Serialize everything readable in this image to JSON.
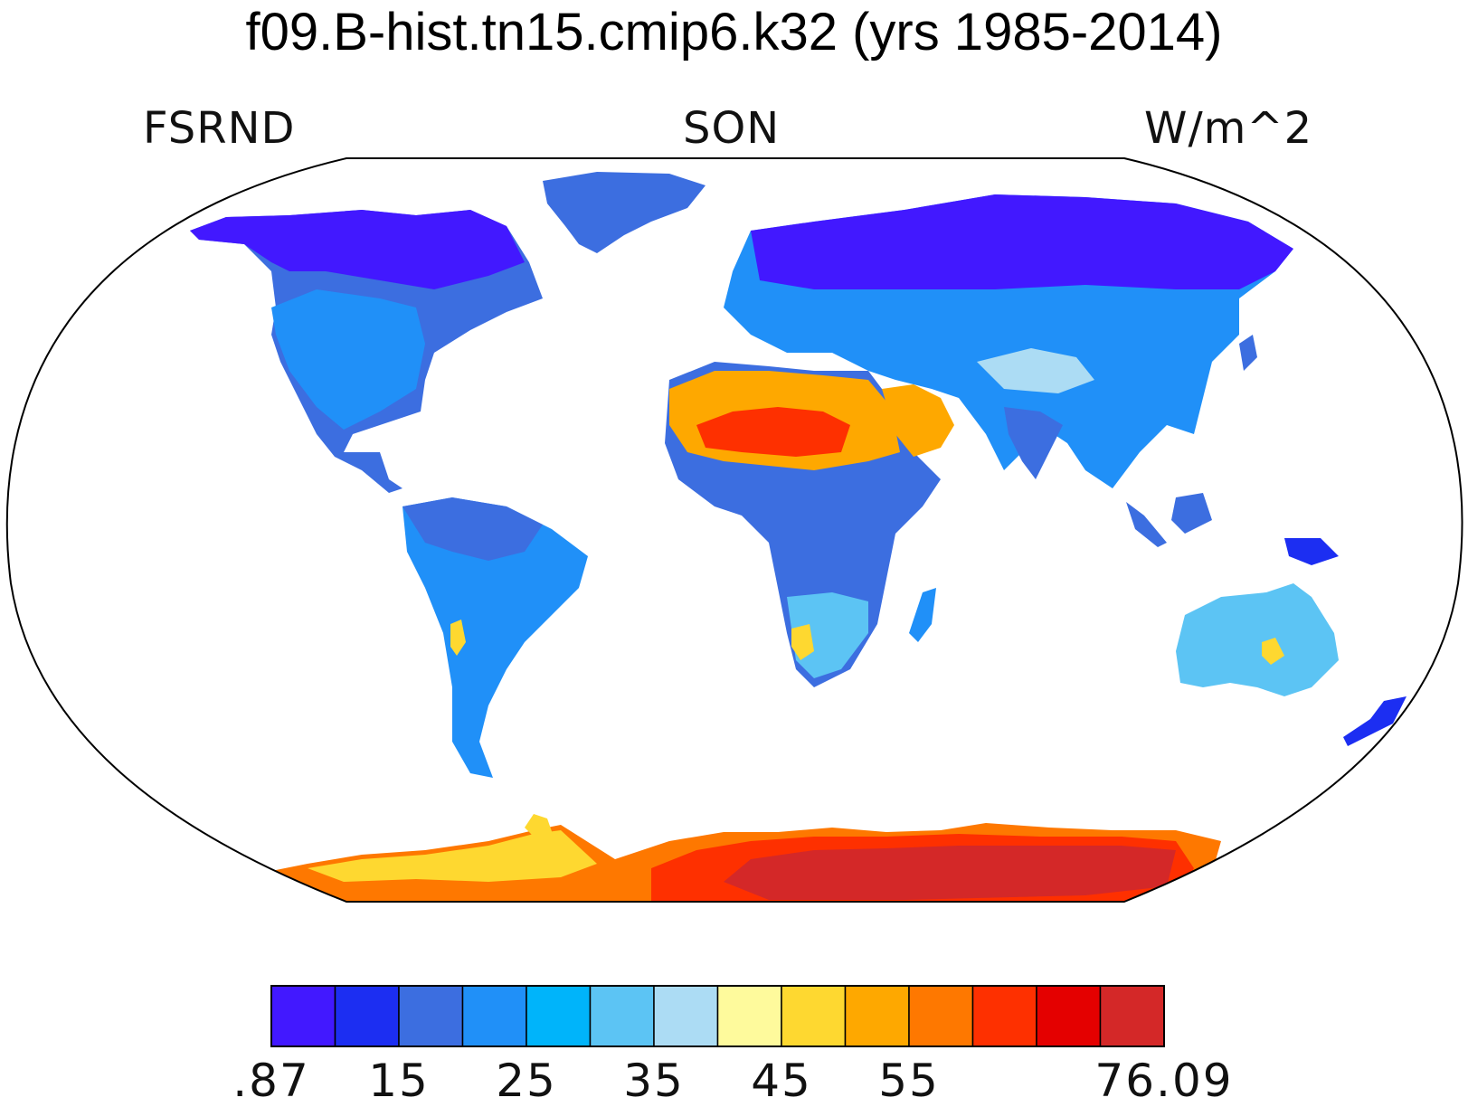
{
  "title": "f09.B-hist.tn15.cmip6.k32 (yrs 1985-2014)",
  "header": {
    "left": "FSRND",
    "center": "SON",
    "right": "W/m^2"
  },
  "colorbar": {
    "colors": [
      "#4218FF",
      "#1C2EF2",
      "#3C6EE0",
      "#2090F8",
      "#00B4FA",
      "#5CC4F4",
      "#ACDCF4",
      "#FEFA9C",
      "#FED830",
      "#FEA800",
      "#FE7800",
      "#FE3000",
      "#E40000",
      "#D42828"
    ],
    "labels": [
      ".87",
      "15",
      "25",
      "35",
      "45",
      "55",
      "76.09"
    ],
    "label_boundary_index": [
      0,
      2,
      4,
      6,
      8,
      10,
      14
    ]
  },
  "map": {
    "projection": "Robinson",
    "ocean_color": "#ffffff",
    "coastline_color": "#000000"
  }
}
